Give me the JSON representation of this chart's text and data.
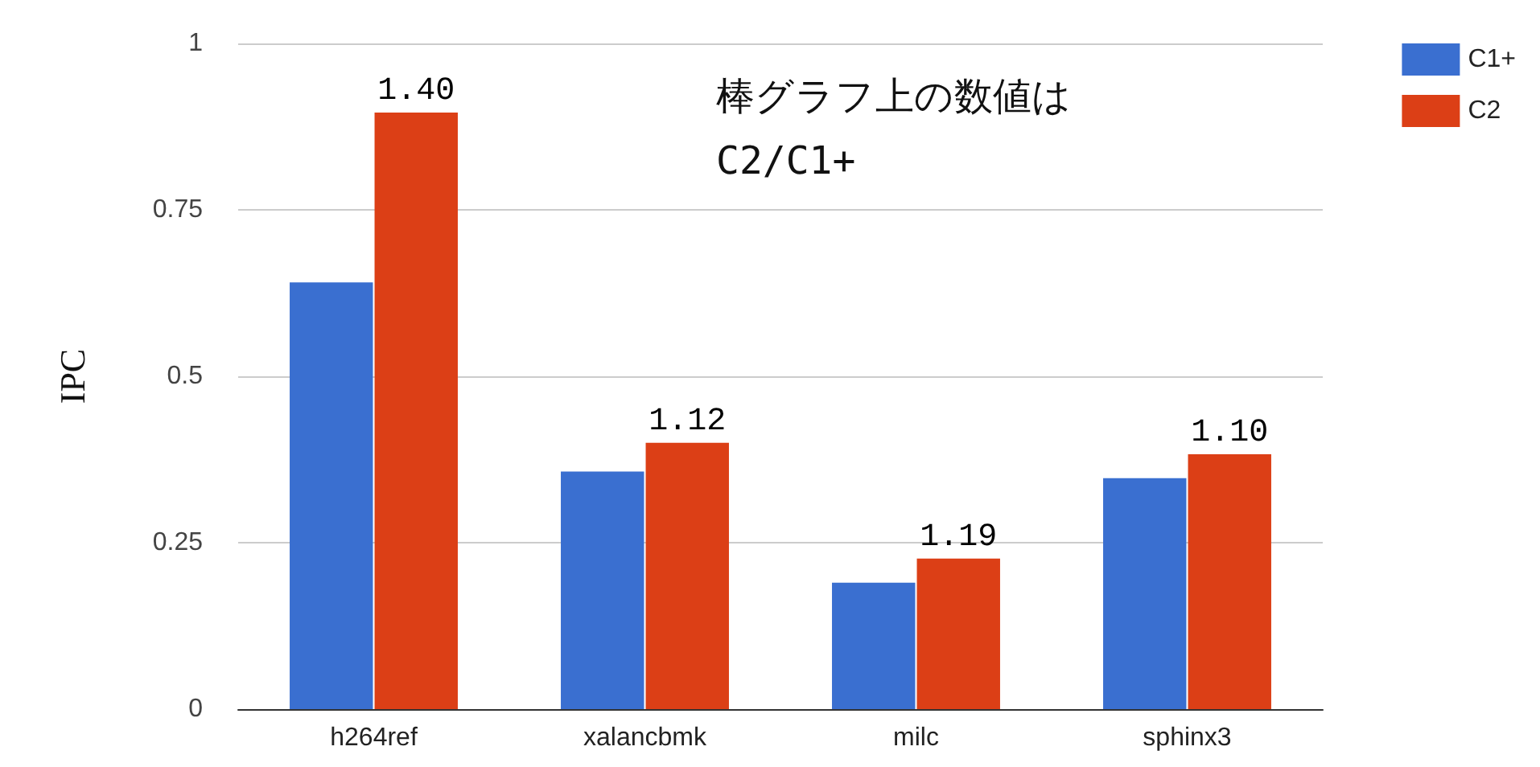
{
  "chart_data": {
    "type": "bar",
    "ylabel": "IPC",
    "categories": [
      "h264ref",
      "xalancbmk",
      "milc",
      "sphinx3"
    ],
    "series": [
      {
        "name": "C1+",
        "color": "#3a6fd0",
        "values": [
          0.641,
          0.357,
          0.19,
          0.347
        ]
      },
      {
        "name": "C2",
        "color": "#dc3f16",
        "values": [
          0.896,
          0.4,
          0.226,
          0.383
        ]
      }
    ],
    "ylim": [
      0,
      1
    ],
    "yticks": [
      0,
      0.25,
      0.5,
      0.75,
      1
    ],
    "grid": "y",
    "legend": "top right",
    "annotations": [
      {
        "text": "1.40",
        "x": "h264ref",
        "y": 0.896
      },
      {
        "text": "1.12",
        "x": "xalancbmk",
        "y": 0.4
      },
      {
        "text": "1.19",
        "x": "milc",
        "y": 0.226
      },
      {
        "text": "1.10",
        "x": "sphinx3",
        "y": 0.383
      },
      "棒グラフ上の数値は\nC2/C1+"
    ]
  }
}
